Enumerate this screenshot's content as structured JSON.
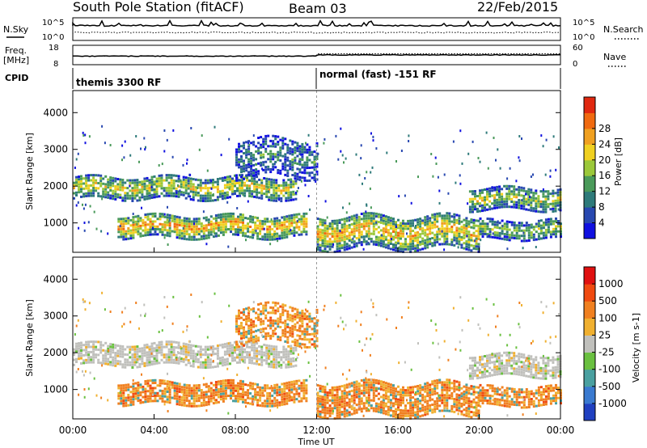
{
  "header": {
    "station": "South Pole Station (fitACF)",
    "beam": "Beam 03",
    "date": "22/Feb/2015"
  },
  "aux": {
    "nsky_label": "N.Sky",
    "nsearch_label": "N.Search",
    "freq_label_1": "Freq.",
    "freq_label_2": "[MHz]",
    "nave_label": "Nave",
    "cpid_label": "CPID",
    "noise_ticks_left": [
      "10^5",
      "10^0"
    ],
    "noise_ticks_right": [
      "10^5",
      "10^0"
    ],
    "freq_ticks": [
      "18",
      "8"
    ],
    "nave_ticks": [
      "60",
      "0"
    ],
    "cpid_segments": [
      {
        "label": "themis 3300 RF",
        "start_hour": 0
      },
      {
        "label": "normal (fast) -151 RF",
        "start_hour": 12
      }
    ]
  },
  "chart_data": [
    {
      "type": "heatmap",
      "name": "power",
      "ylabel": "Slant Range [km]",
      "ylim": [
        200,
        4600
      ],
      "yticks": [
        1000,
        2000,
        3000,
        4000
      ],
      "xlim": [
        0,
        24
      ],
      "colorbar": {
        "label": "Power [dB]",
        "range": [
          0,
          32
        ],
        "ticks": [
          "4",
          "8",
          "12",
          "16",
          "20",
          "24",
          "28"
        ],
        "colors": [
          "#1010e0",
          "#2848b0",
          "#2e7a7a",
          "#4a9a5a",
          "#9bc83a",
          "#f0d020",
          "#f0a020",
          "#f06a10",
          "#e02810"
        ]
      },
      "bands": [
        {
          "start": 0,
          "end": 11,
          "range": [
            1700,
            2300
          ],
          "level": 0.6
        },
        {
          "start": 2.2,
          "end": 11.5,
          "range": [
            650,
            1250
          ],
          "level": 0.75
        },
        {
          "start": 12,
          "end": 20,
          "range": [
            350,
            1250
          ],
          "level": 0.7
        },
        {
          "start": 19.5,
          "end": 24,
          "range": [
            1400,
            2000
          ],
          "level": 0.55
        },
        {
          "start": 8,
          "end": 12,
          "range": [
            2300,
            3300
          ],
          "level": 0.3
        },
        {
          "start": 20,
          "end": 24,
          "range": [
            600,
            1100
          ],
          "level": 0.5
        }
      ]
    },
    {
      "type": "heatmap",
      "name": "velocity",
      "ylabel": "Slant Range [km]",
      "ylim": [
        200,
        4600
      ],
      "yticks": [
        1000,
        2000,
        3000,
        4000
      ],
      "xlim": [
        0,
        24
      ],
      "xlabel": "Time UT",
      "xticks": [
        "00:00",
        "04:00",
        "08:00",
        "12:00",
        "16:00",
        "20:00",
        "00:00"
      ],
      "colorbar": {
        "label": "Velocity [m s-1]",
        "ticks": [
          "1000",
          "500",
          "100",
          "25",
          "-25",
          "-100",
          "-500",
          "-1000"
        ],
        "colors": [
          "#2040c0",
          "#3a7ad0",
          "#4aa0a0",
          "#6ac040",
          "#c0c0bc",
          "#f0b030",
          "#f08020",
          "#f04a10",
          "#e01010"
        ]
      },
      "bands": [
        {
          "start": 0,
          "end": 11,
          "range": [
            1700,
            2300
          ],
          "kind": "gray"
        },
        {
          "start": 2.2,
          "end": 11.5,
          "range": [
            650,
            1250
          ],
          "kind": "orange"
        },
        {
          "start": 12,
          "end": 20,
          "range": [
            350,
            1250
          ],
          "kind": "orange"
        },
        {
          "start": 19.5,
          "end": 24,
          "range": [
            1400,
            2000
          ],
          "kind": "gray"
        },
        {
          "start": 20,
          "end": 24,
          "range": [
            600,
            1100
          ],
          "kind": "orange"
        }
      ]
    }
  ]
}
